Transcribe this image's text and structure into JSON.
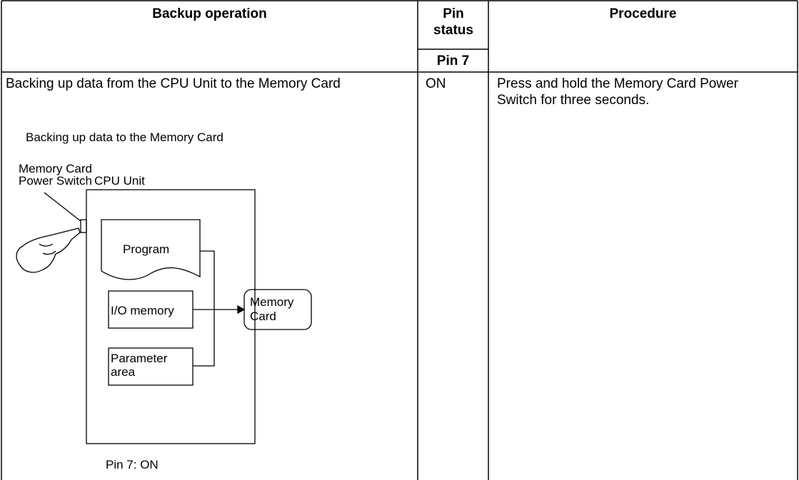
{
  "table": {
    "headers": {
      "operation": "Backup operation",
      "pin_status": "Pin status",
      "pin": "Pin 7",
      "procedure": "Procedure"
    },
    "rows": [
      {
        "operation": "Backing up data from the CPU Unit to the Memory Card",
        "pin7": "ON",
        "procedure": "Press and hold the Memory Card Power Switch for three seconds."
      }
    ]
  },
  "diagram": {
    "caption": "Backing up data to the Memory Card",
    "switch_label": [
      "Memory Card",
      "Power Switch"
    ],
    "cpu_label": "CPU Unit",
    "program": "Program",
    "io_memory": "I/O memory",
    "parameter_area": [
      "Parameter",
      "area"
    ],
    "memory_card": [
      "Memory",
      "Card"
    ],
    "footnote": "Pin 7: ON"
  }
}
